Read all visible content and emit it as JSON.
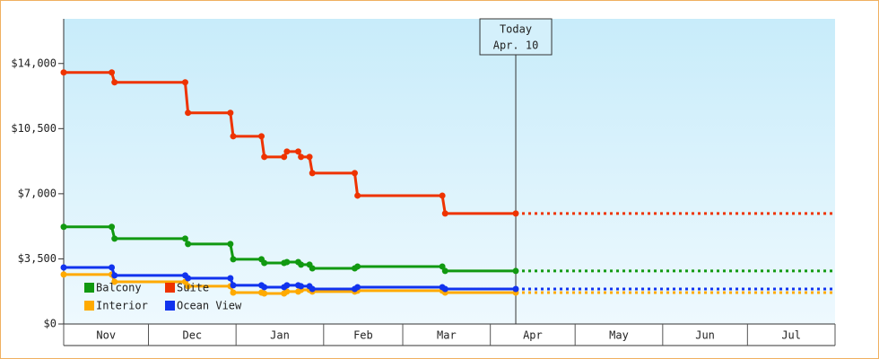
{
  "chart_data": {
    "type": "line",
    "x": [
      0,
      17,
      18,
      43,
      44,
      59,
      60,
      70,
      71,
      78,
      79,
      83,
      84,
      87,
      88,
      103,
      104,
      134,
      135,
      160
    ],
    "xlim": [
      0,
      273
    ],
    "xticks": [
      0,
      30,
      61,
      92,
      120,
      151,
      181,
      212,
      242,
      273
    ],
    "categories": [
      "Nov",
      "Dec",
      "Jan",
      "Feb",
      "Mar",
      "Apr",
      "May",
      "Jun",
      "Jul"
    ],
    "ylim": [
      0,
      16400
    ],
    "yticks": [
      {
        "value": 0,
        "label": "$0"
      },
      {
        "value": 3500,
        "label": "$3,500"
      },
      {
        "value": 7000,
        "label": "$7,000"
      },
      {
        "value": 10500,
        "label": "$10,500"
      },
      {
        "value": 14000,
        "label": "$14,000"
      }
    ],
    "series": [
      {
        "name": "Balcony",
        "color": "#119911",
        "values": [
          5220,
          5220,
          4590,
          4590,
          4300,
          4300,
          3480,
          3480,
          3280,
          3280,
          3330,
          3330,
          3190,
          3190,
          2990,
          2990,
          3090,
          3090,
          2850,
          2850
        ]
      },
      {
        "name": "Suite",
        "color": "#ee3300",
        "values": [
          13520,
          13520,
          12990,
          12990,
          11350,
          11350,
          10090,
          10090,
          8980,
          8980,
          9270,
          9270,
          8980,
          8980,
          8110,
          8110,
          6900,
          6900,
          5940,
          5940
        ]
      },
      {
        "name": "Interior",
        "color": "#ffaa00",
        "values": [
          2660,
          2660,
          2270,
          2270,
          2030,
          2030,
          1690,
          1690,
          1640,
          1640,
          1740,
          1740,
          1830,
          1830,
          1740,
          1740,
          1790,
          1790,
          1690,
          1690
        ]
      },
      {
        "name": "Ocean View",
        "color": "#1133ee",
        "values": [
          3040,
          3040,
          2610,
          2610,
          2460,
          2460,
          2080,
          2080,
          1980,
          1980,
          2080,
          2080,
          2030,
          2030,
          1880,
          1880,
          1980,
          1980,
          1880,
          1880
        ]
      }
    ],
    "projection": true,
    "today": {
      "x": 160,
      "title": "Today",
      "date": "Apr. 10"
    }
  }
}
